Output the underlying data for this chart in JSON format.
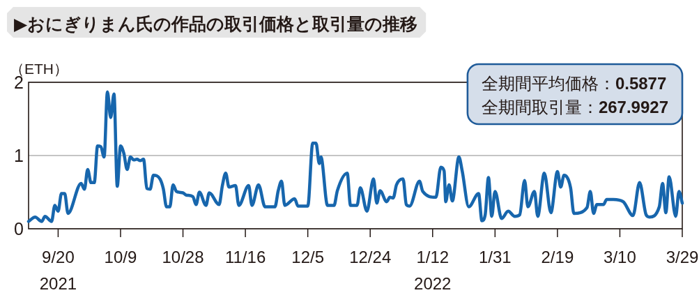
{
  "chart_data": {
    "type": "line",
    "title": "▶おにぎりまん氏の作品の取引価格と取引量の推移",
    "ylabel": "（ETH）",
    "annotations": [
      "全期間平均価格：0.5877",
      "全期間取引量：267.9927"
    ],
    "x": [
      "2021-09-11",
      "2021-09-13",
      "2021-09-15",
      "2021-09-16",
      "2021-09-18",
      "2021-09-19",
      "2021-09-20",
      "2021-09-21",
      "2021-09-22",
      "2021-09-23",
      "2021-09-27",
      "2021-09-28",
      "2021-09-29",
      "2021-09-30",
      "2021-10-01",
      "2021-10-02",
      "2021-10-03",
      "2021-10-04",
      "2021-10-05",
      "2021-10-06",
      "2021-10-07",
      "2021-10-08",
      "2021-10-09",
      "2021-10-10",
      "2021-10-11",
      "2021-10-12",
      "2021-10-13",
      "2021-10-14",
      "2021-10-15",
      "2021-10-16",
      "2021-10-17",
      "2021-10-18",
      "2021-10-19",
      "2021-10-21",
      "2021-10-22",
      "2021-10-23",
      "2021-10-24",
      "2021-10-25",
      "2021-10-26",
      "2021-10-28",
      "2021-10-29",
      "2021-10-31",
      "2021-11-01",
      "2021-11-02",
      "2021-11-04",
      "2021-11-05",
      "2021-11-08",
      "2021-11-09",
      "2021-11-10",
      "2021-11-11",
      "2021-11-13",
      "2021-11-14",
      "2021-11-17",
      "2021-11-18",
      "2021-11-20",
      "2021-11-22",
      "2021-11-25",
      "2021-11-26",
      "2021-11-27",
      "2021-11-28",
      "2021-12-01",
      "2021-12-02",
      "2021-12-05",
      "2021-12-06T12:00",
      "2021-12-07T12:00",
      "2021-12-08T12:00",
      "2021-12-09",
      "2021-12-11",
      "2021-12-13",
      "2021-12-14",
      "2021-12-17",
      "2021-12-18",
      "2021-12-20",
      "2021-12-21",
      "2021-12-23",
      "2021-12-25",
      "2021-12-26",
      "2021-12-27",
      "2021-12-29",
      "2021-12-30",
      "2021-12-31",
      "2022-01-01",
      "2022-01-03",
      "2022-01-04",
      "2022-01-05",
      "2022-01-08",
      "2022-01-09",
      "2022-01-13",
      "2022-01-14T12:00",
      "2022-01-15T12:00",
      "2022-01-16",
      "2022-01-17",
      "2022-01-18",
      "2022-01-20",
      "2022-01-21",
      "2022-01-23",
      "2022-01-26",
      "2022-01-27",
      "2022-01-28",
      "2022-01-29",
      "2022-01-30",
      "2022-01-31",
      "2022-02-02",
      "2022-02-04",
      "2022-02-06",
      "2022-02-07T12:00",
      "2022-02-09",
      "2022-02-10",
      "2022-02-12",
      "2022-02-13",
      "2022-02-15",
      "2022-02-17",
      "2022-02-19",
      "2022-02-20",
      "2022-02-21",
      "2022-02-23",
      "2022-02-24",
      "2022-02-28",
      "2022-03-01",
      "2022-03-02",
      "2022-03-03",
      "2022-03-05",
      "2022-03-06",
      "2022-03-08",
      "2022-03-11",
      "2022-03-14",
      "2022-03-16",
      "2022-03-18",
      "2022-03-19",
      "2022-03-22",
      "2022-03-23",
      "2022-03-24",
      "2022-03-25",
      "2022-03-27",
      "2022-03-28",
      "2022-03-29"
    ],
    "series": [
      {
        "color": "#1766ad",
        "values": [
          0.1,
          0.16,
          0.1,
          0.17,
          0.1,
          0.32,
          0.24,
          0.48,
          0.48,
          0.21,
          0.62,
          0.54,
          0.81,
          0.63,
          0.63,
          1.13,
          1.12,
          0.98,
          1.87,
          1.52,
          1.84,
          0.58,
          1.13,
          1.03,
          0.81,
          0.98,
          0.94,
          0.95,
          0.93,
          0.95,
          0.55,
          0.54,
          0.73,
          0.68,
          0.55,
          0.3,
          0.3,
          0.6,
          0.51,
          0.49,
          0.46,
          0.44,
          0.33,
          0.5,
          0.32,
          0.49,
          0.33,
          0.59,
          0.76,
          0.57,
          0.59,
          0.32,
          0.59,
          0.32,
          0.6,
          0.3,
          0.3,
          0.52,
          0.65,
          0.32,
          0.41,
          0.31,
          0.31,
          1.17,
          1.17,
          0.89,
          0.98,
          0.32,
          0.32,
          0.52,
          0.76,
          0.32,
          0.32,
          0.56,
          0.24,
          0.68,
          0.35,
          0.52,
          0.37,
          0.43,
          0.42,
          0.6,
          0.68,
          0.33,
          0.31,
          0.65,
          0.51,
          0.43,
          0.84,
          0.79,
          0.37,
          0.6,
          0.38,
          0.98,
          0.79,
          0.3,
          0.48,
          0.11,
          0.19,
          0.7,
          0.17,
          0.51,
          0.14,
          0.24,
          0.17,
          0.19,
          0.66,
          0.3,
          0.51,
          0.17,
          0.76,
          0.22,
          0.78,
          0.57,
          0.73,
          0.56,
          0.21,
          0.29,
          0.51,
          0.21,
          0.33,
          0.33,
          0.4,
          0.4,
          0.37,
          0.18,
          0.63,
          0.19,
          0.16,
          0.3,
          0.62,
          0.22,
          0.71,
          0.17,
          0.51,
          0.35
        ]
      }
    ],
    "xlim": [
      "2021-09-11",
      "2022-03-29"
    ],
    "xticks": [
      {
        "value": "2021-09-20",
        "label": "9/20\n2021"
      },
      {
        "value": "2021-10-09",
        "label": "10/9"
      },
      {
        "value": "2021-10-28",
        "label": "10/28"
      },
      {
        "value": "2021-11-16",
        "label": "11/16"
      },
      {
        "value": "2021-12-05",
        "label": "12/5"
      },
      {
        "value": "2021-12-24",
        "label": "12/24"
      },
      {
        "value": "2022-01-12",
        "label": "1/12\n2022"
      },
      {
        "value": "2022-01-31",
        "label": "1/31"
      },
      {
        "value": "2022-02-19",
        "label": "2/19"
      },
      {
        "value": "2022-03-10",
        "label": "3/10"
      },
      {
        "value": "2022-03-29",
        "label": "3/29"
      }
    ],
    "ylim": [
      0,
      2
    ],
    "yticks": [
      0,
      1,
      2
    ],
    "grid": "y",
    "line_style": "solid"
  }
}
